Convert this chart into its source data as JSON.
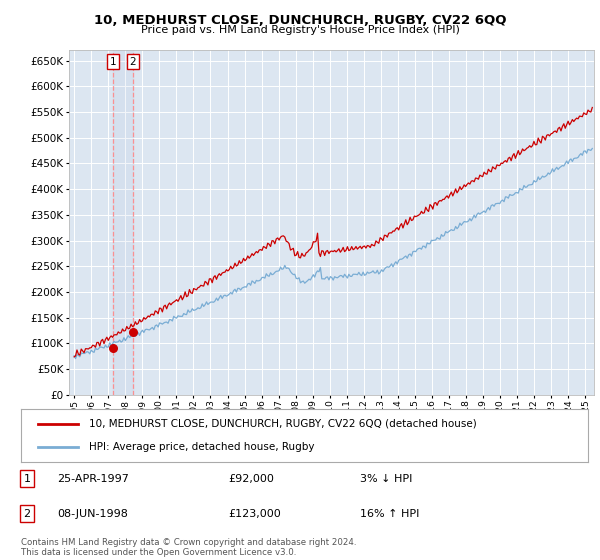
{
  "title": "10, MEDHURST CLOSE, DUNCHURCH, RUGBY, CV22 6QQ",
  "subtitle": "Price paid vs. HM Land Registry's House Price Index (HPI)",
  "legend_line1": "10, MEDHURST CLOSE, DUNCHURCH, RUGBY, CV22 6QQ (detached house)",
  "legend_line2": "HPI: Average price, detached house, Rugby",
  "transaction1_date": "25-APR-1997",
  "transaction1_price": "£92,000",
  "transaction1_hpi": "3% ↓ HPI",
  "transaction1_year": 1997.3,
  "transaction1_value": 92000,
  "transaction2_date": "08-JUN-1998",
  "transaction2_price": "£123,000",
  "transaction2_hpi": "16% ↑ HPI",
  "transaction2_year": 1998.45,
  "transaction2_value": 123000,
  "footer": "Contains HM Land Registry data © Crown copyright and database right 2024.\nThis data is licensed under the Open Government Licence v3.0.",
  "hpi_color": "#7aadd4",
  "price_color": "#cc0000",
  "background_color": "#ffffff",
  "plot_bg_color": "#dce6f1",
  "grid_color": "#ffffff",
  "ylim": [
    0,
    670000
  ],
  "xlim_start": 1994.7,
  "xlim_end": 2025.5
}
